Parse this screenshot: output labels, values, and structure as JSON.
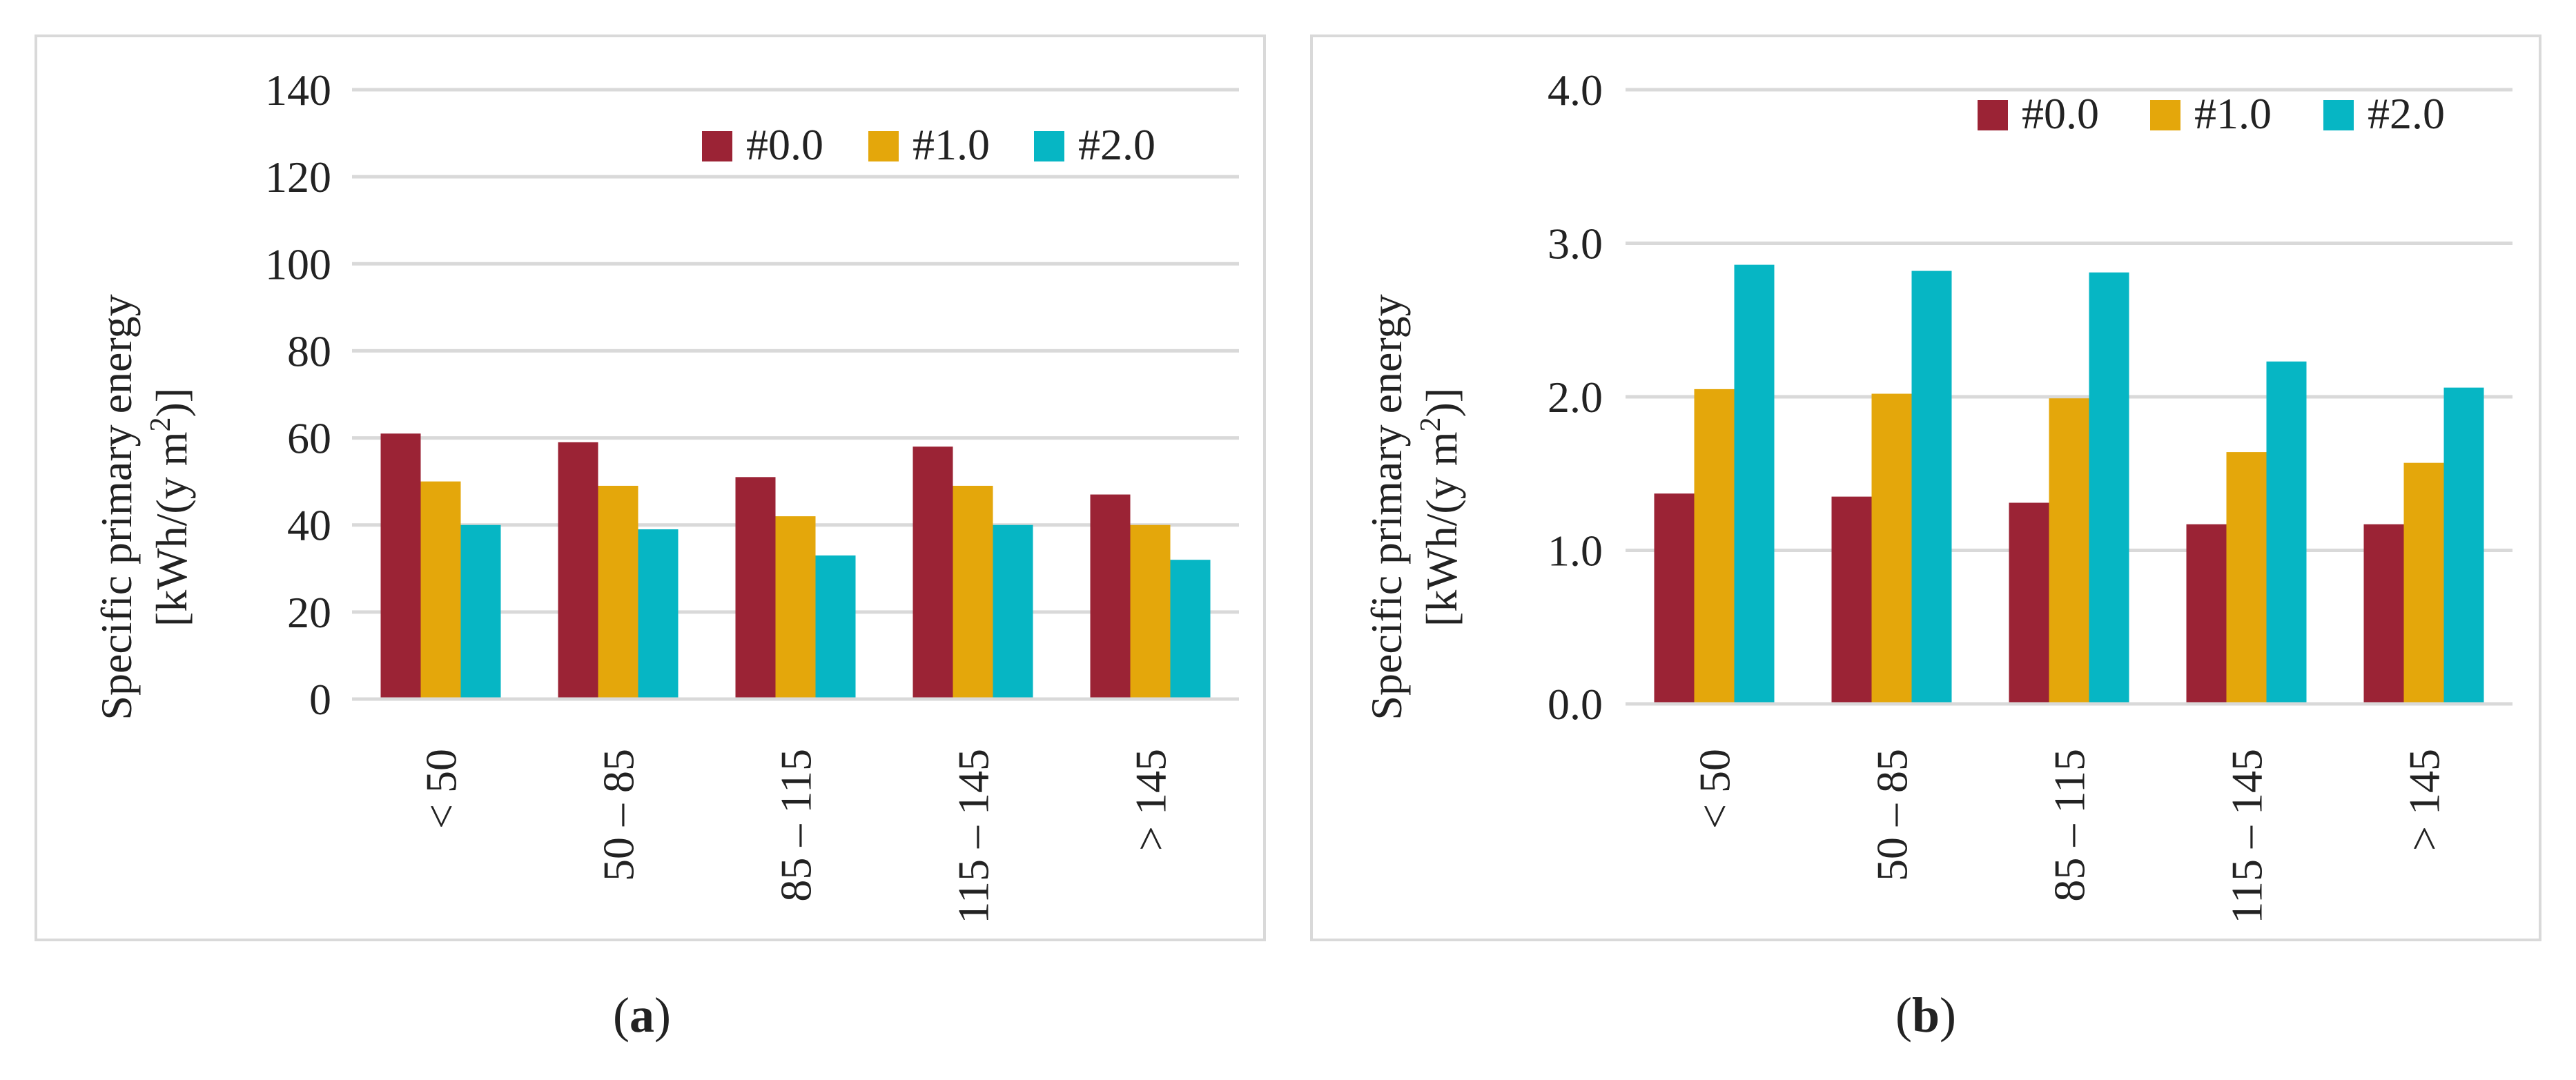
{
  "series_colors": [
    "#9b2335",
    "#e4a70b",
    "#06b6c4"
  ],
  "chart_data": [
    {
      "type": "bar",
      "panel_label_prefix": "(",
      "panel_label": "a",
      "panel_label_suffix": ")",
      "ylabel_line1": "Specific primary energy",
      "ylabel_line2_pre": "[kWh/(y m",
      "ylabel_sup": "2",
      "ylabel_line2_post": ")]",
      "ylim": [
        0,
        140
      ],
      "yticks": [
        0,
        20,
        40,
        60,
        80,
        100,
        120,
        140
      ],
      "ytick_labels": [
        "0",
        "20",
        "40",
        "60",
        "80",
        "100",
        "120",
        "140"
      ],
      "grid": true,
      "legend_position": "top-right",
      "categories": [
        "< 50",
        "50 – 85",
        "85 – 115",
        "115 – 145",
        "> 145"
      ],
      "series": [
        {
          "name": "#0.0",
          "values": [
            61,
            59,
            51,
            58,
            47
          ]
        },
        {
          "name": "#1.0",
          "values": [
            50,
            49,
            42,
            49,
            40
          ]
        },
        {
          "name": "#2.0",
          "values": [
            40,
            39,
            33,
            40,
            32
          ]
        }
      ]
    },
    {
      "type": "bar",
      "panel_label_prefix": "(",
      "panel_label": "b",
      "panel_label_suffix": ")",
      "ylabel_line1": "Specific primary energy",
      "ylabel_line2_pre": "[kWh/(y m",
      "ylabel_sup": "2",
      "ylabel_line2_post": ")]",
      "ylim": [
        0,
        4
      ],
      "yticks": [
        0,
        1,
        2,
        3,
        4
      ],
      "ytick_labels": [
        "0.0",
        "1.0",
        "2.0",
        "3.0",
        "4.0"
      ],
      "grid": true,
      "legend_position": "top-right",
      "categories": [
        "< 50",
        "50 – 85",
        "85 – 115",
        "115 – 145",
        "> 145"
      ],
      "series": [
        {
          "name": "#0.0",
          "values": [
            1.37,
            1.35,
            1.31,
            1.17,
            1.17
          ]
        },
        {
          "name": "#1.0",
          "values": [
            2.05,
            2.02,
            1.99,
            1.64,
            1.57
          ]
        },
        {
          "name": "#2.0",
          "values": [
            2.86,
            2.82,
            2.81,
            2.23,
            2.06
          ]
        }
      ]
    }
  ]
}
